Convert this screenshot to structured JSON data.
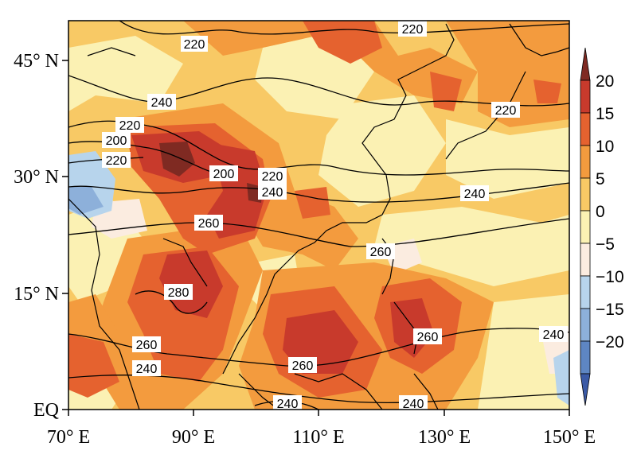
{
  "map": {
    "lon_ticks": [
      "70° E",
      "90° E",
      "110° E",
      "130° E",
      "150° E"
    ],
    "lat_ticks": [
      "EQ",
      "15° N",
      "30° N",
      "45° N"
    ],
    "colorbar": {
      "levels": [
        "20",
        "15",
        "10",
        "5",
        "0",
        "−5",
        "−10",
        "−15",
        "−20"
      ],
      "colors": [
        "#7f2a22",
        "#c83a2c",
        "#e5622f",
        "#f39b3e",
        "#f8c965",
        "#fbf1b3",
        "#fbece0",
        "#b7d4ec",
        "#8db0da",
        "#5e86c3",
        "#3b5aa6"
      ]
    },
    "contour_labels": [
      {
        "text": "220"
      },
      {
        "text": "220"
      },
      {
        "text": "240"
      },
      {
        "text": "220"
      },
      {
        "text": "220"
      },
      {
        "text": "200"
      },
      {
        "text": "220"
      },
      {
        "text": "200"
      },
      {
        "text": "220"
      },
      {
        "text": "240"
      },
      {
        "text": "240"
      },
      {
        "text": "260"
      },
      {
        "text": "260"
      },
      {
        "text": "280"
      },
      {
        "text": "260"
      },
      {
        "text": "260"
      },
      {
        "text": "240"
      },
      {
        "text": "240"
      },
      {
        "text": "260"
      },
      {
        "text": "240"
      },
      {
        "text": "240"
      }
    ]
  }
}
